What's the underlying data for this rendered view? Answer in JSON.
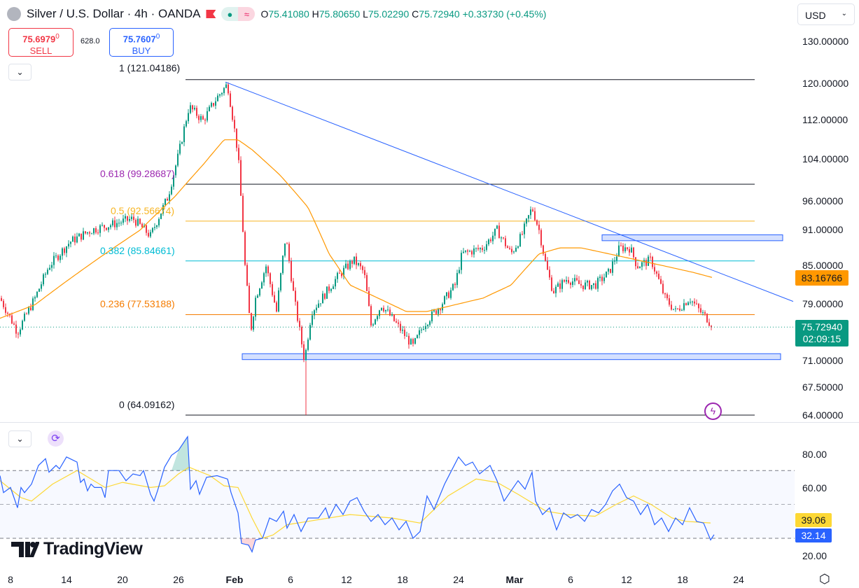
{
  "header": {
    "title": "Silver / U.S. Dollar · 4h · OANDA",
    "o_label": "O",
    "o": "75.41080",
    "h_label": "H",
    "h": "75.80650",
    "l_label": "L",
    "l": "75.02290",
    "c_label": "C",
    "c": "75.72940",
    "change": "+0.33730 (+0.45%)",
    "currency": "USD"
  },
  "trade": {
    "sell_price": "75.6979",
    "sell_sup": "0",
    "sell_label": "SELL",
    "spread": "628.0",
    "buy_price": "75.7607",
    "buy_sup": "0",
    "buy_label": "BUY"
  },
  "fib": [
    {
      "label": "1 (121.04186)",
      "value": 121.04186,
      "color": "#131722"
    },
    {
      "label": "0.618 (99.28687)",
      "value": 99.28687,
      "color": "#9c27b0"
    },
    {
      "label": "0.5 (92.56674)",
      "value": 92.56674,
      "color": "#f7b523"
    },
    {
      "label": "0.382 (85.84661)",
      "value": 85.84661,
      "color": "#00bcd4"
    },
    {
      "label": "0.236 (77.53188)",
      "value": 77.53188,
      "color": "#f57c00"
    },
    {
      "label": "0 (64.09162)",
      "value": 64.09162,
      "color": "#131722"
    }
  ],
  "price_axis": [
    "130.00000",
    "120.00000",
    "112.00000",
    "104.00000",
    "96.00000",
    "91.00000",
    "85.00000",
    "79.00000",
    "71.00000",
    "67.50000",
    "64.00000"
  ],
  "ma_tag": "83.16766",
  "last_price": "75.72940",
  "countdown": "02:09:15",
  "rsi_axis": [
    "80.00",
    "60.00",
    "20.00"
  ],
  "rsi_value": "32.14",
  "rsi_ma_value": "39.06",
  "time_axis": [
    "8",
    "14",
    "20",
    "26",
    "Feb",
    "6",
    "12",
    "18",
    "24",
    "Mar",
    "6",
    "12",
    "18",
    "24"
  ],
  "brand": "TradingView",
  "colors": {
    "up": "#089981",
    "down": "#f23645",
    "ma": "#ff9800",
    "rsi": "#2962ff",
    "rsi_ma": "#fdd835",
    "trend": "#2962ff"
  },
  "chart_data": {
    "type": "candlestick",
    "scale": "log",
    "ylim": [
      64,
      130
    ],
    "price_path": [
      [
        0,
        80
      ],
      [
        25,
        75
      ],
      [
        50,
        80
      ],
      [
        70,
        85
      ],
      [
        100,
        89
      ],
      [
        130,
        91
      ],
      [
        160,
        92
      ],
      [
        190,
        93
      ],
      [
        215,
        90
      ],
      [
        240,
        97
      ],
      [
        255,
        105
      ],
      [
        270,
        115
      ],
      [
        290,
        112
      ],
      [
        310,
        117
      ],
      [
        325,
        120
      ],
      [
        340,
        105
      ],
      [
        350,
        85
      ],
      [
        358,
        75
      ],
      [
        365,
        80
      ],
      [
        380,
        85
      ],
      [
        395,
        78
      ],
      [
        408,
        90
      ],
      [
        420,
        80
      ],
      [
        435,
        71
      ],
      [
        445,
        78
      ],
      [
        460,
        80
      ],
      [
        480,
        83
      ],
      [
        505,
        86
      ],
      [
        520,
        84
      ],
      [
        530,
        76
      ],
      [
        545,
        79
      ],
      [
        560,
        77
      ],
      [
        590,
        73
      ],
      [
        605,
        76
      ],
      [
        630,
        79
      ],
      [
        650,
        82
      ],
      [
        660,
        87
      ],
      [
        690,
        88
      ],
      [
        710,
        91
      ],
      [
        730,
        87
      ],
      [
        745,
        90
      ],
      [
        760,
        95
      ],
      [
        770,
        91
      ],
      [
        780,
        85
      ],
      [
        790,
        81
      ],
      [
        810,
        83
      ],
      [
        830,
        82
      ],
      [
        850,
        82
      ],
      [
        870,
        84
      ],
      [
        885,
        88
      ],
      [
        900,
        88
      ],
      [
        910,
        85
      ],
      [
        930,
        86
      ],
      [
        950,
        80
      ],
      [
        965,
        78
      ],
      [
        985,
        80
      ],
      [
        1000,
        78
      ],
      [
        1010,
        77
      ],
      [
        1018,
        75.73
      ]
    ],
    "ma_path": [
      [
        0,
        77
      ],
      [
        50,
        79
      ],
      [
        100,
        83
      ],
      [
        150,
        87
      ],
      [
        200,
        91
      ],
      [
        250,
        97
      ],
      [
        290,
        103
      ],
      [
        320,
        108
      ],
      [
        340,
        108
      ],
      [
        360,
        106
      ],
      [
        400,
        101
      ],
      [
        440,
        95
      ],
      [
        470,
        87
      ],
      [
        500,
        82
      ],
      [
        540,
        80
      ],
      [
        580,
        78
      ],
      [
        610,
        78
      ],
      [
        650,
        79
      ],
      [
        690,
        80
      ],
      [
        730,
        82
      ],
      [
        770,
        87
      ],
      [
        800,
        88
      ],
      [
        830,
        88
      ],
      [
        870,
        87
      ],
      [
        910,
        86
      ],
      [
        950,
        85
      ],
      [
        990,
        84
      ],
      [
        1018,
        83.17
      ]
    ],
    "rsi_path": [
      [
        0,
        67
      ],
      [
        5,
        57
      ],
      [
        15,
        60
      ],
      [
        25,
        48
      ],
      [
        30,
        60
      ],
      [
        35,
        57
      ],
      [
        45,
        62
      ],
      [
        55,
        73
      ],
      [
        65,
        77
      ],
      [
        70,
        69
      ],
      [
        80,
        73
      ],
      [
        85,
        71
      ],
      [
        95,
        78
      ],
      [
        105,
        76
      ],
      [
        110,
        75
      ],
      [
        115,
        63
      ],
      [
        120,
        65
      ],
      [
        125,
        58
      ],
      [
        130,
        62
      ],
      [
        135,
        60
      ],
      [
        145,
        60
      ],
      [
        150,
        54
      ],
      [
        155,
        70
      ],
      [
        170,
        70
      ],
      [
        180,
        64
      ],
      [
        190,
        68
      ],
      [
        200,
        67
      ],
      [
        205,
        70
      ],
      [
        215,
        56
      ],
      [
        220,
        52
      ],
      [
        225,
        58
      ],
      [
        235,
        72
      ],
      [
        245,
        79
      ],
      [
        255,
        82
      ],
      [
        268,
        90
      ],
      [
        272,
        59
      ],
      [
        280,
        64
      ],
      [
        285,
        56
      ],
      [
        295,
        66
      ],
      [
        310,
        67
      ],
      [
        325,
        65
      ],
      [
        330,
        57
      ],
      [
        340,
        45
      ],
      [
        345,
        27
      ],
      [
        355,
        26
      ],
      [
        360,
        22
      ],
      [
        365,
        29
      ],
      [
        375,
        30
      ],
      [
        385,
        42
      ],
      [
        395,
        40
      ],
      [
        405,
        46
      ],
      [
        410,
        36
      ],
      [
        420,
        44
      ],
      [
        430,
        34
      ],
      [
        440,
        42
      ],
      [
        455,
        42
      ],
      [
        465,
        48
      ],
      [
        470,
        42
      ],
      [
        480,
        50
      ],
      [
        490,
        44
      ],
      [
        500,
        52
      ],
      [
        510,
        54
      ],
      [
        520,
        46
      ],
      [
        530,
        40
      ],
      [
        540,
        44
      ],
      [
        550,
        38
      ],
      [
        560,
        42
      ],
      [
        570,
        35
      ],
      [
        580,
        40
      ],
      [
        590,
        30
      ],
      [
        600,
        34
      ],
      [
        610,
        55
      ],
      [
        620,
        47
      ],
      [
        635,
        62
      ],
      [
        645,
        70
      ],
      [
        655,
        78
      ],
      [
        665,
        73
      ],
      [
        675,
        75
      ],
      [
        685,
        68
      ],
      [
        700,
        73
      ],
      [
        710,
        64
      ],
      [
        720,
        52
      ],
      [
        730,
        58
      ],
      [
        740,
        64
      ],
      [
        750,
        59
      ],
      [
        760,
        69
      ],
      [
        765,
        52
      ],
      [
        775,
        44
      ],
      [
        785,
        48
      ],
      [
        795,
        35
      ],
      [
        805,
        45
      ],
      [
        815,
        42
      ],
      [
        825,
        44
      ],
      [
        835,
        40
      ],
      [
        845,
        47
      ],
      [
        855,
        45
      ],
      [
        865,
        50
      ],
      [
        875,
        58
      ],
      [
        885,
        62
      ],
      [
        895,
        54
      ],
      [
        905,
        52
      ],
      [
        915,
        44
      ],
      [
        925,
        50
      ],
      [
        935,
        38
      ],
      [
        945,
        42
      ],
      [
        955,
        34
      ],
      [
        965,
        42
      ],
      [
        975,
        38
      ],
      [
        985,
        48
      ],
      [
        995,
        40
      ],
      [
        1005,
        39
      ],
      [
        1010,
        34
      ],
      [
        1015,
        29
      ],
      [
        1020,
        32.14
      ]
    ],
    "rsi_ma_path": [
      [
        0,
        64
      ],
      [
        30,
        54
      ],
      [
        45,
        52
      ],
      [
        75,
        62
      ],
      [
        110,
        70
      ],
      [
        150,
        60
      ],
      [
        175,
        63
      ],
      [
        215,
        60
      ],
      [
        235,
        61
      ],
      [
        255,
        68
      ],
      [
        270,
        72
      ],
      [
        300,
        67
      ],
      [
        320,
        61
      ],
      [
        340,
        60
      ],
      [
        360,
        42
      ],
      [
        375,
        30
      ],
      [
        390,
        32
      ],
      [
        410,
        38
      ],
      [
        440,
        40
      ],
      [
        500,
        44
      ],
      [
        560,
        42
      ],
      [
        600,
        39
      ],
      [
        640,
        55
      ],
      [
        680,
        65
      ],
      [
        710,
        63
      ],
      [
        740,
        56
      ],
      [
        780,
        46
      ],
      [
        810,
        44
      ],
      [
        850,
        43
      ],
      [
        880,
        50
      ],
      [
        905,
        55
      ],
      [
        930,
        50
      ],
      [
        960,
        42
      ],
      [
        980,
        40
      ],
      [
        1015,
        39.06
      ]
    ],
    "rsi_levels": [
      70,
      50,
      30
    ],
    "zones": [
      [
        71.2,
        72.0
      ],
      [
        89.2,
        90.2
      ]
    ],
    "trendline": [
      [
        322,
        120.5
      ],
      [
        1133,
        79.5
      ]
    ]
  }
}
